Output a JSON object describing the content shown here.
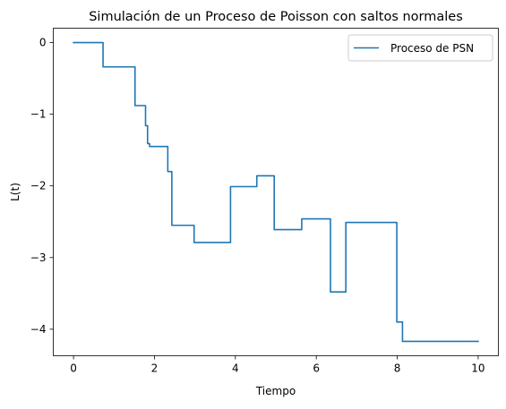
{
  "chart_data": {
    "type": "line",
    "title": "Simulación de un Proceso de Poisson con saltos normales",
    "xlabel": "Tiempo",
    "ylabel": "L(t)",
    "xlim": [
      -0.5,
      10.5
    ],
    "ylim": [
      -4.37,
      0.2
    ],
    "x_ticks": [
      0,
      2,
      4,
      6,
      8,
      10
    ],
    "y_ticks": [
      0,
      -1,
      -2,
      -3,
      -4
    ],
    "grid": false,
    "legend_position": "top-right",
    "step": "post",
    "series": [
      {
        "name": "Proceso de PSN",
        "color": "#1f77b4",
        "x": [
          0,
          0.73,
          1.52,
          1.78,
          1.83,
          1.88,
          2.33,
          2.43,
          2.98,
          3.88,
          4.53,
          4.96,
          5.64,
          6.35,
          6.73,
          7.99,
          8.13,
          10.0
        ],
        "y": [
          0,
          -0.34,
          -0.88,
          -1.16,
          -1.41,
          -1.45,
          -1.8,
          -2.55,
          -2.79,
          -2.01,
          -1.86,
          -2.61,
          -2.46,
          -3.48,
          -2.51,
          -3.9,
          -4.17,
          -4.17
        ]
      }
    ]
  }
}
